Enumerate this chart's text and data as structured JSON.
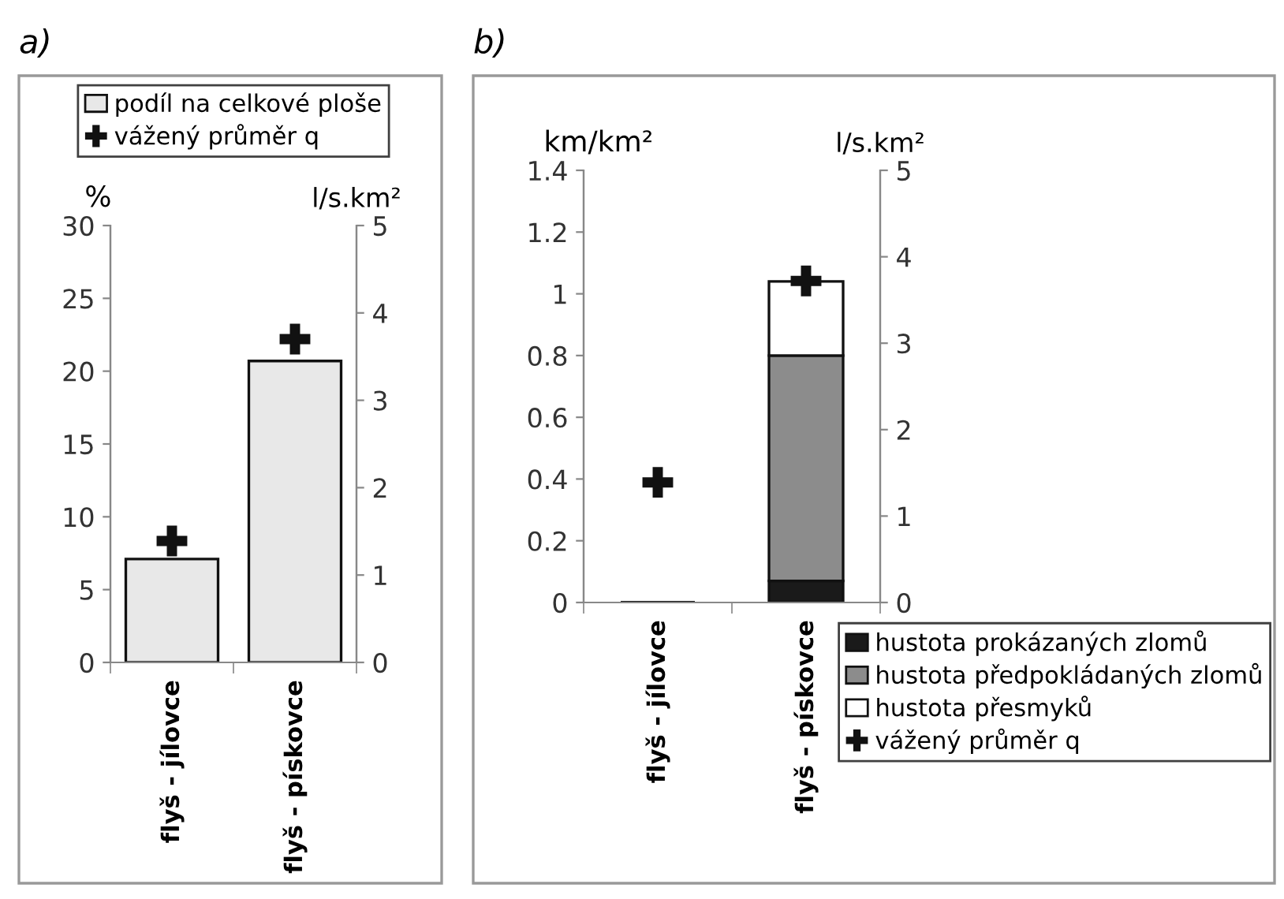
{
  "chart_data": [
    {
      "type": "bar",
      "title": "a)",
      "categories": [
        "flyš - jílovce",
        "flyš - pískovce"
      ],
      "ylabel": "%",
      "y2label": "l/s.km²",
      "ylim": [
        0,
        30
      ],
      "yticks": [
        0,
        5,
        10,
        15,
        20,
        25,
        30
      ],
      "y2lim": [
        0,
        5
      ],
      "y2ticks": [
        0,
        1,
        2,
        3,
        4,
        5
      ],
      "legend": "top",
      "grid": false,
      "series": [
        {
          "name": "podíl na celkové ploše",
          "color": "#e8e8e8",
          "values": [
            7.1,
            20.7
          ]
        },
        {
          "name": "vážený průměr q",
          "type": "scatter",
          "axis": "y2",
          "marker": "cross",
          "color": "#111111",
          "values": [
            1.39,
            3.7
          ]
        }
      ]
    },
    {
      "type": "bar",
      "title": "b)",
      "categories": [
        "flyš - jílovce",
        "flyš - pískovce"
      ],
      "ylabel": "km/km²",
      "y2label": "l/s.km²",
      "ylim": [
        0,
        1.4
      ],
      "yticks": [
        0,
        0.2,
        0.4,
        0.6,
        0.8,
        1,
        1.2,
        1.4
      ],
      "y2lim": [
        0,
        5
      ],
      "y2ticks": [
        0,
        1,
        2,
        3,
        4,
        5
      ],
      "legend": "bottom right",
      "grid": false,
      "stacked": true,
      "series": [
        {
          "name": "hustota prokázaných zlomů",
          "color": "#1a1a1a",
          "values": [
            null,
            0.07
          ]
        },
        {
          "name": "hustota předpokládaných zlomů",
          "color": "#8c8c8c",
          "values": [
            null,
            0.73
          ]
        },
        {
          "name": "hustota přesmyků",
          "color": "#ffffff",
          "values": [
            null,
            0.24
          ]
        },
        {
          "name": "vážený průměr q",
          "type": "scatter",
          "axis": "y2",
          "marker": "cross",
          "color": "#111111",
          "values": [
            1.39,
            3.72
          ]
        }
      ]
    }
  ]
}
